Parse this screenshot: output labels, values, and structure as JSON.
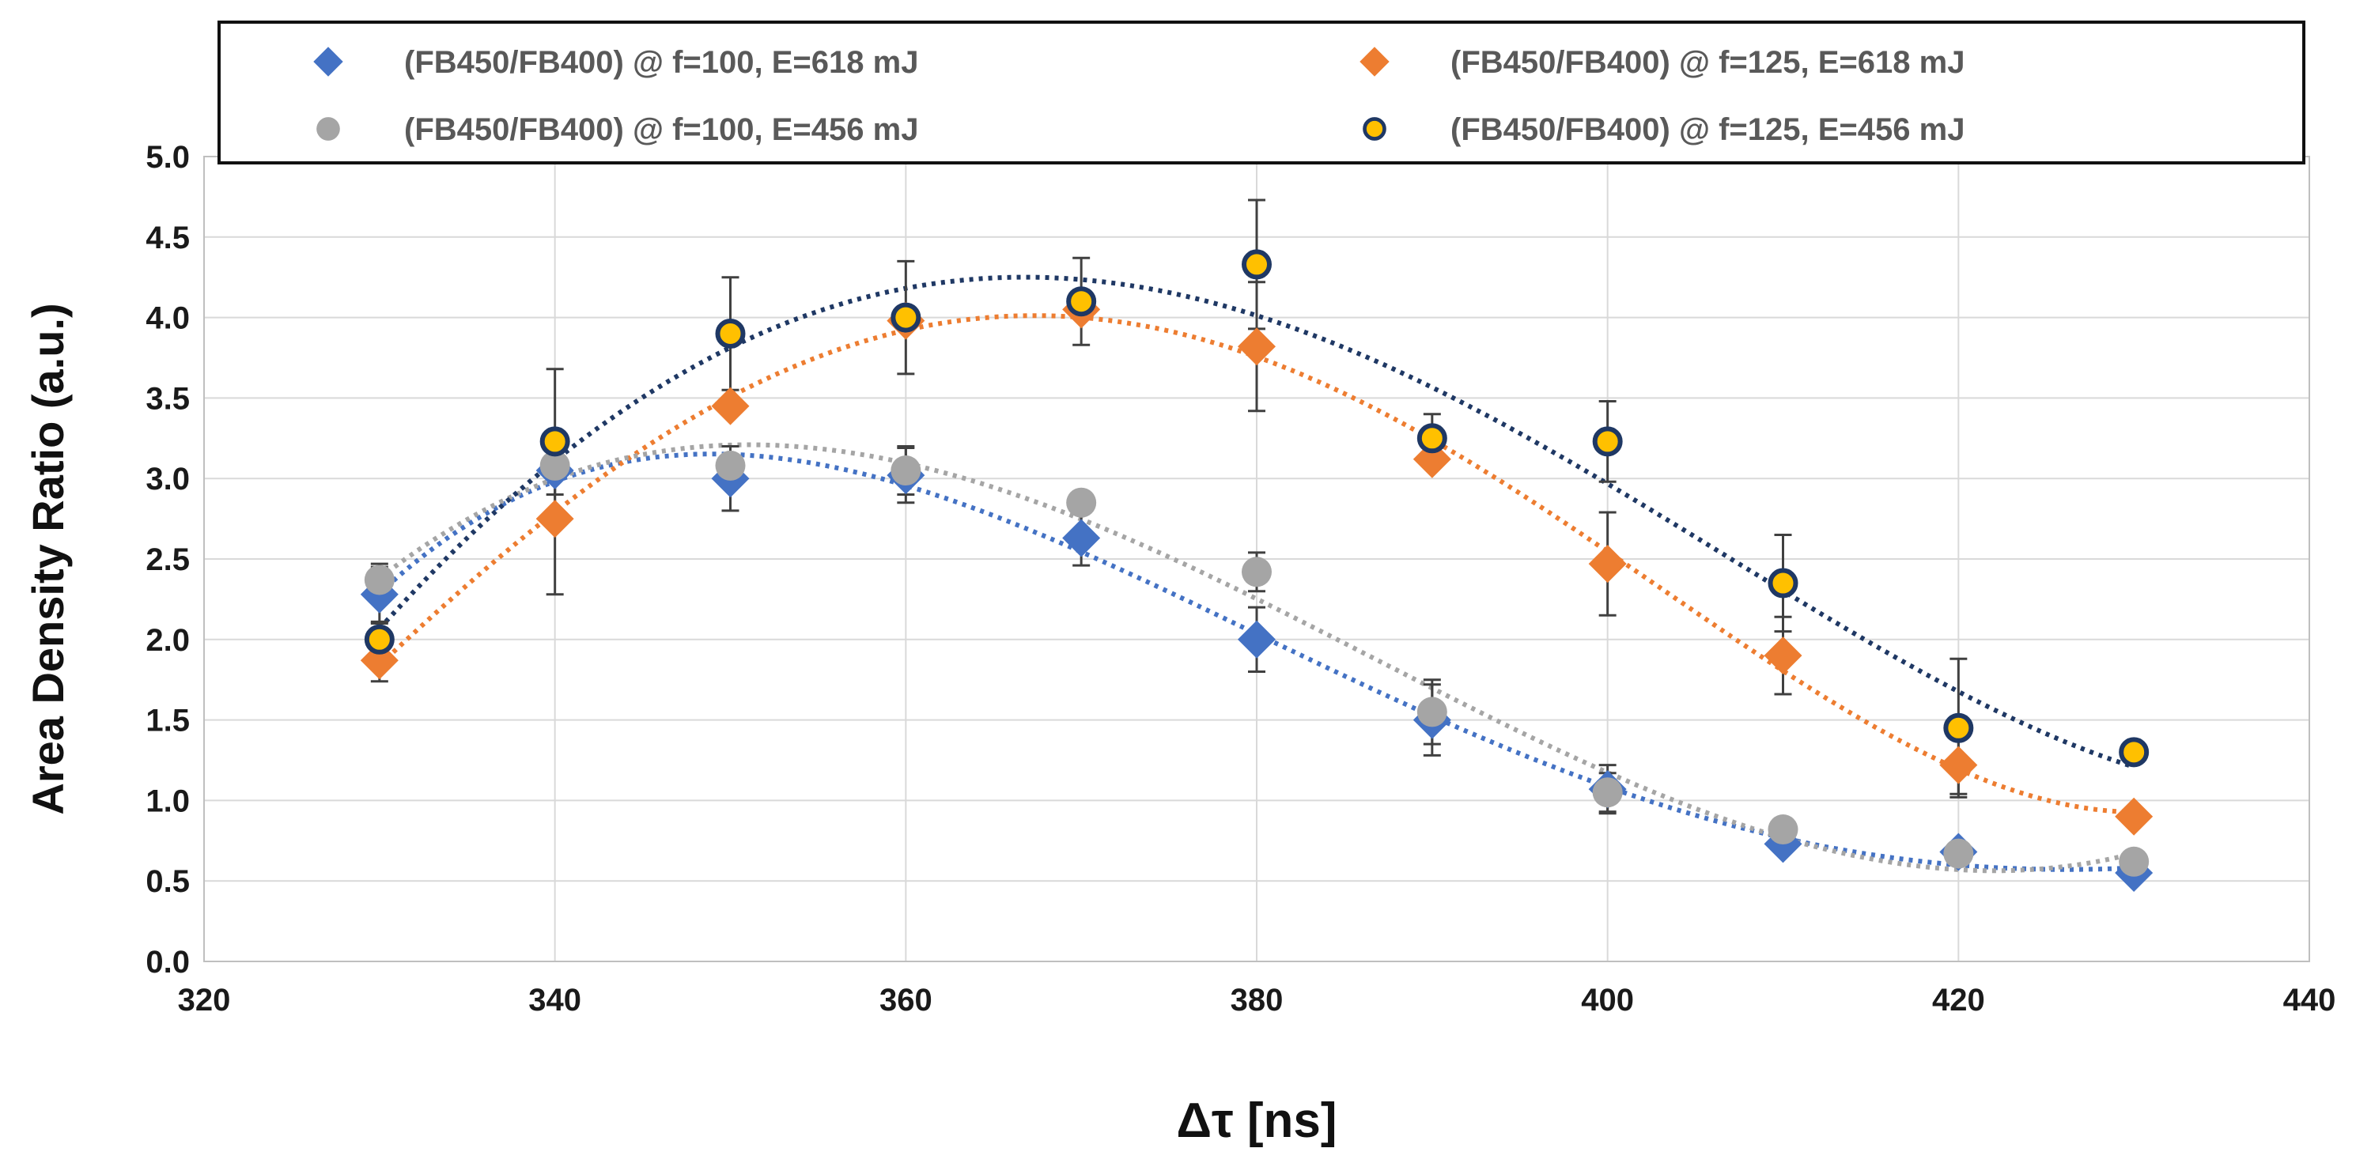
{
  "chart_data": {
    "type": "scatter",
    "title": "",
    "xlabel": "Δτ [ns]",
    "ylabel": "Area Density Ratio (a.u.)",
    "xlim": [
      320,
      440
    ],
    "ylim": [
      0,
      5
    ],
    "x_ticks": [
      "320",
      "340",
      "360",
      "380",
      "400",
      "420",
      "440"
    ],
    "y_ticks": [
      "0.0",
      "0.5",
      "1.0",
      "1.5",
      "2.0",
      "2.5",
      "3.0",
      "3.5",
      "4.0",
      "4.5",
      "5.0"
    ],
    "grid": true,
    "legend_position": "top",
    "trendline": "polynomial (dotted)",
    "series": [
      {
        "name": "(FB450/FB400) @ f=100, E=618 mJ",
        "marker": "diamond",
        "color": "#4472C4",
        "x": [
          330,
          340,
          350,
          360,
          370,
          380,
          390,
          400,
          410,
          420,
          430
        ],
        "values": [
          2.28,
          3.05,
          3.0,
          3.02,
          2.63,
          2.0,
          1.5,
          1.07,
          0.73,
          0.68,
          0.55
        ],
        "errors": [
          0.17,
          0.15,
          0.2,
          0.17,
          0.17,
          0.2,
          0.22,
          0.15,
          0.0,
          0.0,
          0.0
        ]
      },
      {
        "name": "(FB450/FB400) @ f=125, E=618 mJ",
        "marker": "diamond",
        "color": "#ED7D31",
        "x": [
          330,
          340,
          350,
          360,
          370,
          380,
          390,
          400,
          410,
          420,
          430
        ],
        "values": [
          1.87,
          2.75,
          3.45,
          3.98,
          4.05,
          3.82,
          3.12,
          2.47,
          1.9,
          1.22,
          0.9
        ],
        "errors": [
          0.13,
          0.47,
          0.0,
          0.0,
          0.0,
          0.4,
          0.0,
          0.32,
          0.24,
          0.18,
          0.0
        ]
      },
      {
        "name": "(FB450/FB400) @ f=100, E=456 mJ",
        "marker": "circle",
        "color": "#A5A5A5",
        "x": [
          330,
          340,
          350,
          360,
          370,
          380,
          390,
          400,
          410,
          420,
          430
        ],
        "values": [
          2.37,
          3.08,
          3.08,
          3.05,
          2.85,
          2.42,
          1.55,
          1.05,
          0.82,
          0.67,
          0.62
        ],
        "errors": [
          0.1,
          0.0,
          0.0,
          0.15,
          0.0,
          0.12,
          0.2,
          0.12,
          0.0,
          0.0,
          0.0
        ]
      },
      {
        "name": "(FB450/FB400) @ f=125, E=456 mJ",
        "marker": "circle",
        "color": "#FFC000",
        "edge_color": "#1F3864",
        "x": [
          330,
          340,
          350,
          360,
          370,
          380,
          390,
          400,
          410,
          420,
          430
        ],
        "values": [
          2.0,
          3.23,
          3.9,
          4.0,
          4.1,
          4.33,
          3.25,
          3.23,
          2.35,
          1.45,
          1.3
        ],
        "errors": [
          0.1,
          0.45,
          0.35,
          0.35,
          0.27,
          0.4,
          0.15,
          0.25,
          0.3,
          0.43,
          0.0
        ]
      }
    ]
  }
}
